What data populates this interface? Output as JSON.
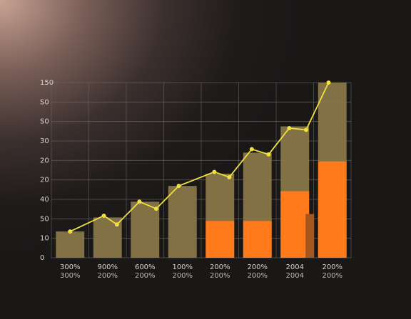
{
  "chart_data": {
    "type": "bar",
    "title": "",
    "xlabel": "",
    "ylabel": "",
    "y_tick_labels": [
      "0",
      "10",
      "50",
      "40",
      "20",
      "20",
      "30",
      "S0",
      "S0",
      "150"
    ],
    "categories": [
      "300% / 300%",
      "900% / 200%",
      "600% / 200%",
      "100% / 200%",
      "200% / 200%",
      "200% / 200%",
      "2004 / 2004",
      "200% / 200%"
    ],
    "category_labels_line1": [
      "300%",
      "900%",
      "600%",
      "100%",
      "200%",
      "200%",
      "2004",
      "200%"
    ],
    "category_labels_line2": [
      "300%",
      "200%",
      "200%",
      "200%",
      "200%",
      "200%",
      "2004",
      "200%"
    ],
    "ylim": [
      0,
      10
    ],
    "grid": true,
    "series": [
      {
        "kind": "bar",
        "color": "#8a7a4a",
        "values": [
          1.5,
          2.3,
          3.2,
          4.1,
          4.8,
          6.0,
          7.5,
          10.0
        ]
      },
      {
        "kind": "bar",
        "color": "#ff7a1a",
        "values": [
          0,
          0,
          0,
          0,
          2.1,
          2.1,
          3.8,
          5.5
        ]
      },
      {
        "kind": "line",
        "color": "#f0e040",
        "x": [
          0.5,
          1.4,
          1.75,
          2.35,
          2.8,
          3.4,
          4.35,
          4.75,
          5.35,
          5.8,
          6.35,
          6.8,
          7.4
        ],
        "values": [
          1.5,
          2.4,
          1.9,
          3.2,
          2.8,
          4.1,
          4.9,
          4.6,
          6.2,
          5.9,
          7.4,
          7.3,
          10.0
        ]
      }
    ],
    "extra_bar": {
      "color": "#a6551c",
      "x": 6.9,
      "value": 2.5
    }
  }
}
